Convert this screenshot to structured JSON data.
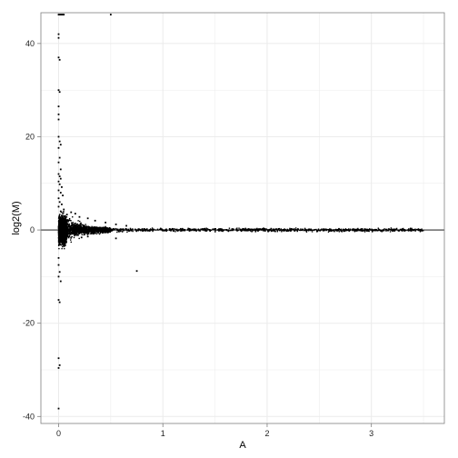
{
  "chart_data": {
    "type": "scatter",
    "title": "",
    "xlabel": "A",
    "ylabel": "log2(M)",
    "xlim": [
      -0.17,
      3.7
    ],
    "ylim": [
      -41.5,
      46.6
    ],
    "x_ticks": [
      0,
      1,
      2,
      3
    ],
    "y_ticks": [
      -40,
      -20,
      0,
      20,
      40
    ],
    "grid": true,
    "hline": 0,
    "legend": "none",
    "colors": {
      "points": "#000000",
      "grid": "#ebebeb",
      "border": "#7f7f7f",
      "background": "#ffffff"
    },
    "points": [
      [
        0.0,
        46.2
      ],
      [
        0.01,
        46.2
      ],
      [
        0.02,
        46.2
      ],
      [
        0.03,
        46.2
      ],
      [
        0.04,
        46.2
      ],
      [
        0.05,
        46.2
      ],
      [
        0.5,
        46.2
      ],
      [
        0.0,
        42.0
      ],
      [
        0.0,
        41.2
      ],
      [
        0.0,
        37.0
      ],
      [
        0.01,
        36.5
      ],
      [
        0.0,
        30.0
      ],
      [
        0.01,
        29.6
      ],
      [
        0.0,
        26.5
      ],
      [
        0.0,
        24.8
      ],
      [
        0.0,
        23.7
      ],
      [
        0.0,
        20.0
      ],
      [
        0.01,
        19.0
      ],
      [
        0.02,
        18.3
      ],
      [
        0.0,
        17.6
      ],
      [
        0.01,
        15.5
      ],
      [
        0.0,
        14.5
      ],
      [
        0.02,
        13.0
      ],
      [
        0.0,
        12.0
      ],
      [
        0.01,
        11.5
      ],
      [
        0.02,
        11.0
      ],
      [
        0.0,
        10.4
      ],
      [
        0.01,
        9.8
      ],
      [
        0.03,
        9.2
      ],
      [
        0.0,
        8.5
      ],
      [
        0.02,
        8.0
      ],
      [
        0.04,
        7.4
      ],
      [
        0.0,
        6.8
      ],
      [
        0.01,
        6.0
      ],
      [
        0.03,
        5.5
      ],
      [
        0.0,
        5.0
      ],
      [
        0.05,
        4.4
      ],
      [
        0.02,
        4.0
      ],
      [
        0.04,
        3.6
      ],
      [
        0.08,
        3.3
      ],
      [
        0.12,
        3.8
      ],
      [
        0.16,
        3.5
      ],
      [
        0.2,
        2.8
      ],
      [
        0.28,
        2.5
      ],
      [
        0.35,
        2.0
      ],
      [
        0.45,
        1.6
      ],
      [
        0.55,
        1.2
      ],
      [
        0.65,
        0.9
      ],
      [
        0.0,
        -6.0
      ],
      [
        0.0,
        -7.5
      ],
      [
        0.01,
        -9.0
      ],
      [
        0.0,
        -10.0
      ],
      [
        0.02,
        -11.0
      ],
      [
        0.0,
        -15.0
      ],
      [
        0.01,
        -15.5
      ],
      [
        0.0,
        -27.5
      ],
      [
        0.01,
        -29.0
      ],
      [
        0.0,
        -29.6
      ],
      [
        0.0,
        -38.3
      ],
      [
        0.22,
        -1.6
      ],
      [
        0.28,
        -1.4
      ],
      [
        0.55,
        -1.8
      ],
      [
        0.75,
        -8.8
      ]
    ]
  }
}
